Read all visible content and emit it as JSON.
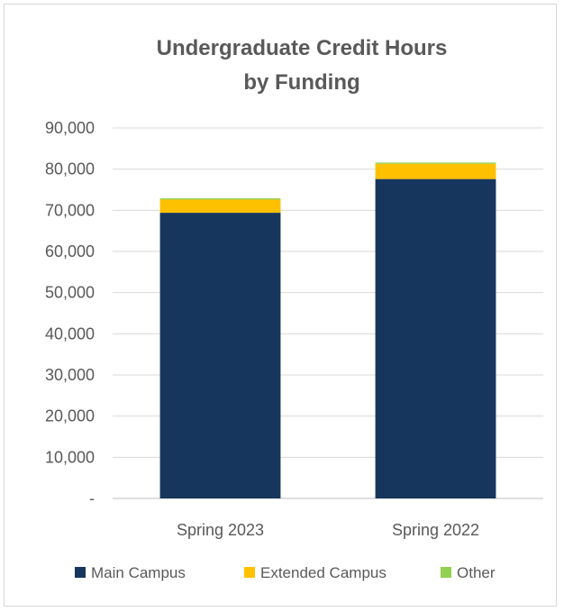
{
  "chart_data": {
    "type": "bar",
    "stacked": true,
    "title": "Undergraduate Credit Hours by Funding",
    "title_lines": [
      "Undergraduate Credit Hours",
      "by Funding"
    ],
    "categories": [
      "Spring 2023",
      "Spring 2022"
    ],
    "series": [
      {
        "name": "Main Campus",
        "values": [
          69400,
          77600
        ],
        "color": "#17365d"
      },
      {
        "name": "Extended Campus",
        "values": [
          3200,
          3700
        ],
        "color": "#ffc000"
      },
      {
        "name": "Other",
        "values": [
          300,
          300
        ],
        "color": "#92d050"
      }
    ],
    "ylim": [
      0,
      90000
    ],
    "y_ticks": [
      {
        "value": 0,
        "label": "-"
      },
      {
        "value": 10000,
        "label": "10,000"
      },
      {
        "value": 20000,
        "label": "20,000"
      },
      {
        "value": 30000,
        "label": "30,000"
      },
      {
        "value": 40000,
        "label": "40,000"
      },
      {
        "value": 50000,
        "label": "50,000"
      },
      {
        "value": 60000,
        "label": "60,000"
      },
      {
        "value": 70000,
        "label": "70,000"
      },
      {
        "value": 80000,
        "label": "80,000"
      },
      {
        "value": 90000,
        "label": "90,000"
      }
    ],
    "grid": true,
    "legend_position": "bottom",
    "xlabel": "",
    "ylabel": ""
  }
}
